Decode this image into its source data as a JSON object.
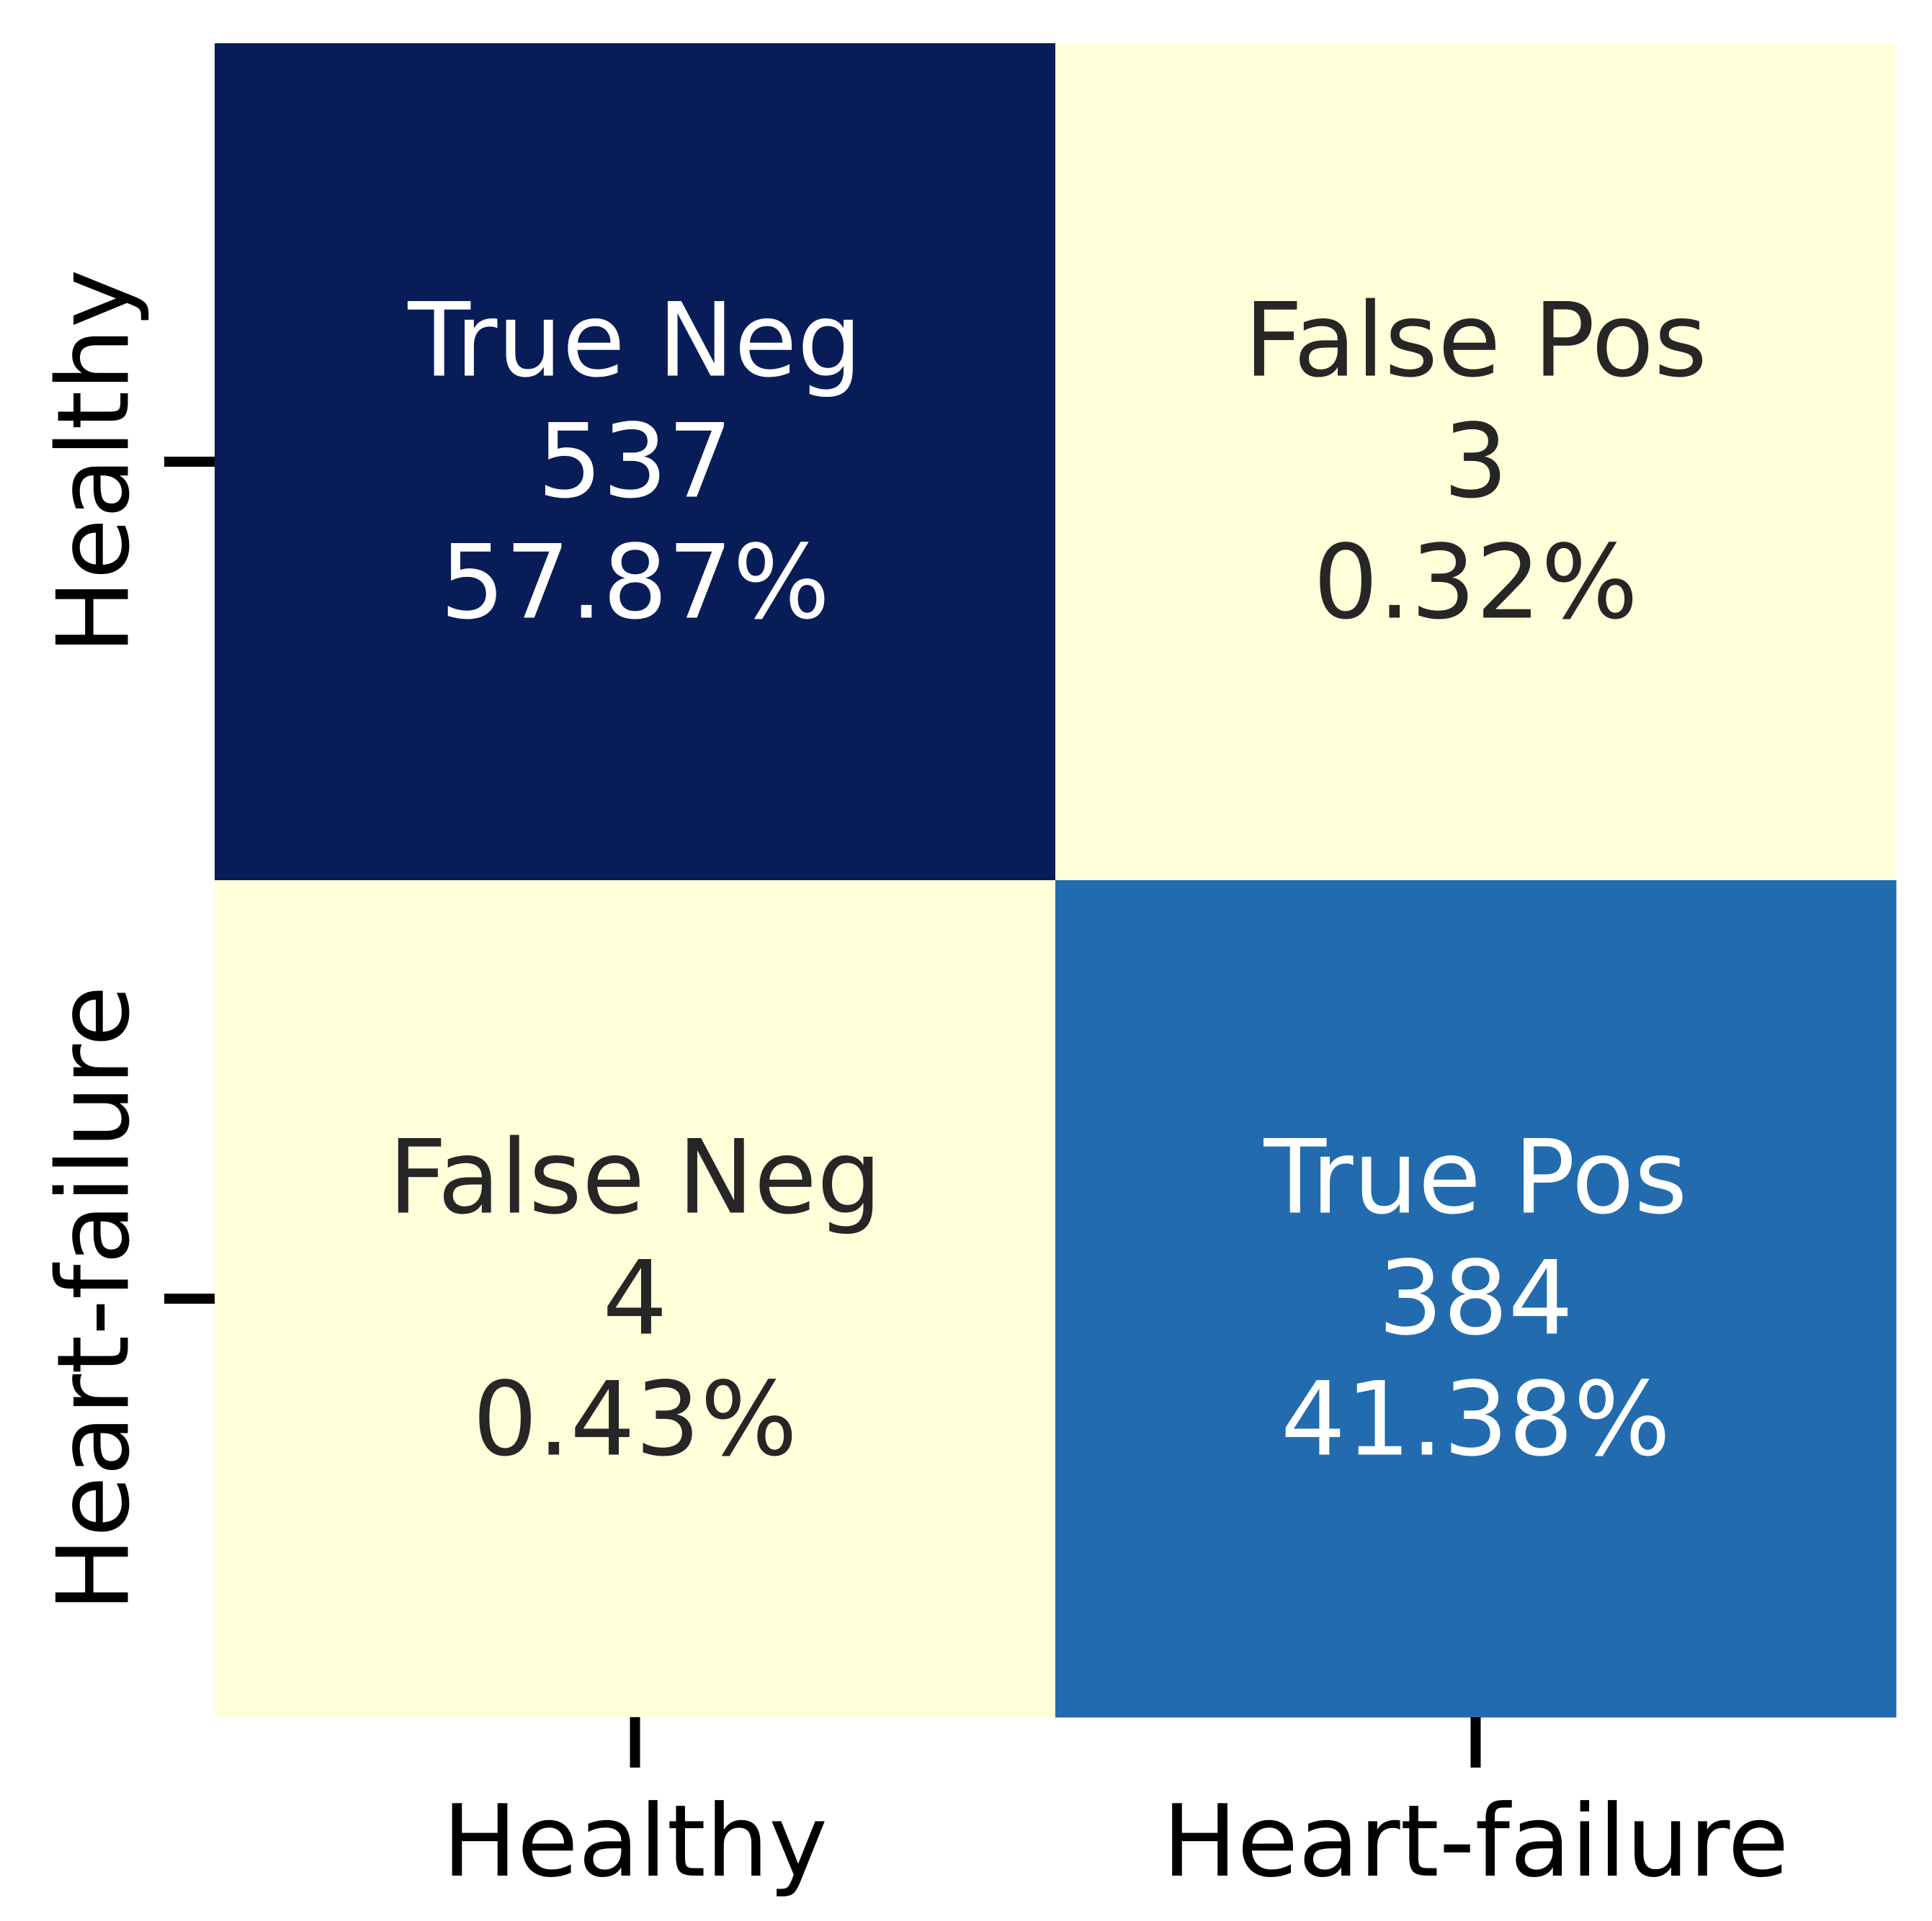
{
  "chart_data": {
    "type": "heatmap",
    "x_categories": [
      "Healthy",
      "Heart-failure"
    ],
    "y_categories": [
      "Healthy",
      "Heart-failure"
    ],
    "cells": [
      [
        {
          "label": "True Neg",
          "count": "537",
          "percent": "57.87%",
          "value": 537,
          "color": "#081d58",
          "text_color": "#ffffff"
        },
        {
          "label": "False Pos",
          "count": "3",
          "percent": "0.32%",
          "value": 3,
          "color": "#ffffd9",
          "text_color": "#262626"
        }
      ],
      [
        {
          "label": "False Neg",
          "count": "4",
          "percent": "0.43%",
          "value": 4,
          "color": "#ffffd9",
          "text_color": "#262626"
        },
        {
          "label": "True Pos",
          "count": "384",
          "percent": "41.38%",
          "value": 384,
          "color": "#226baf",
          "text_color": "#ffffff"
        }
      ]
    ],
    "colorbar": false,
    "grid": false
  }
}
